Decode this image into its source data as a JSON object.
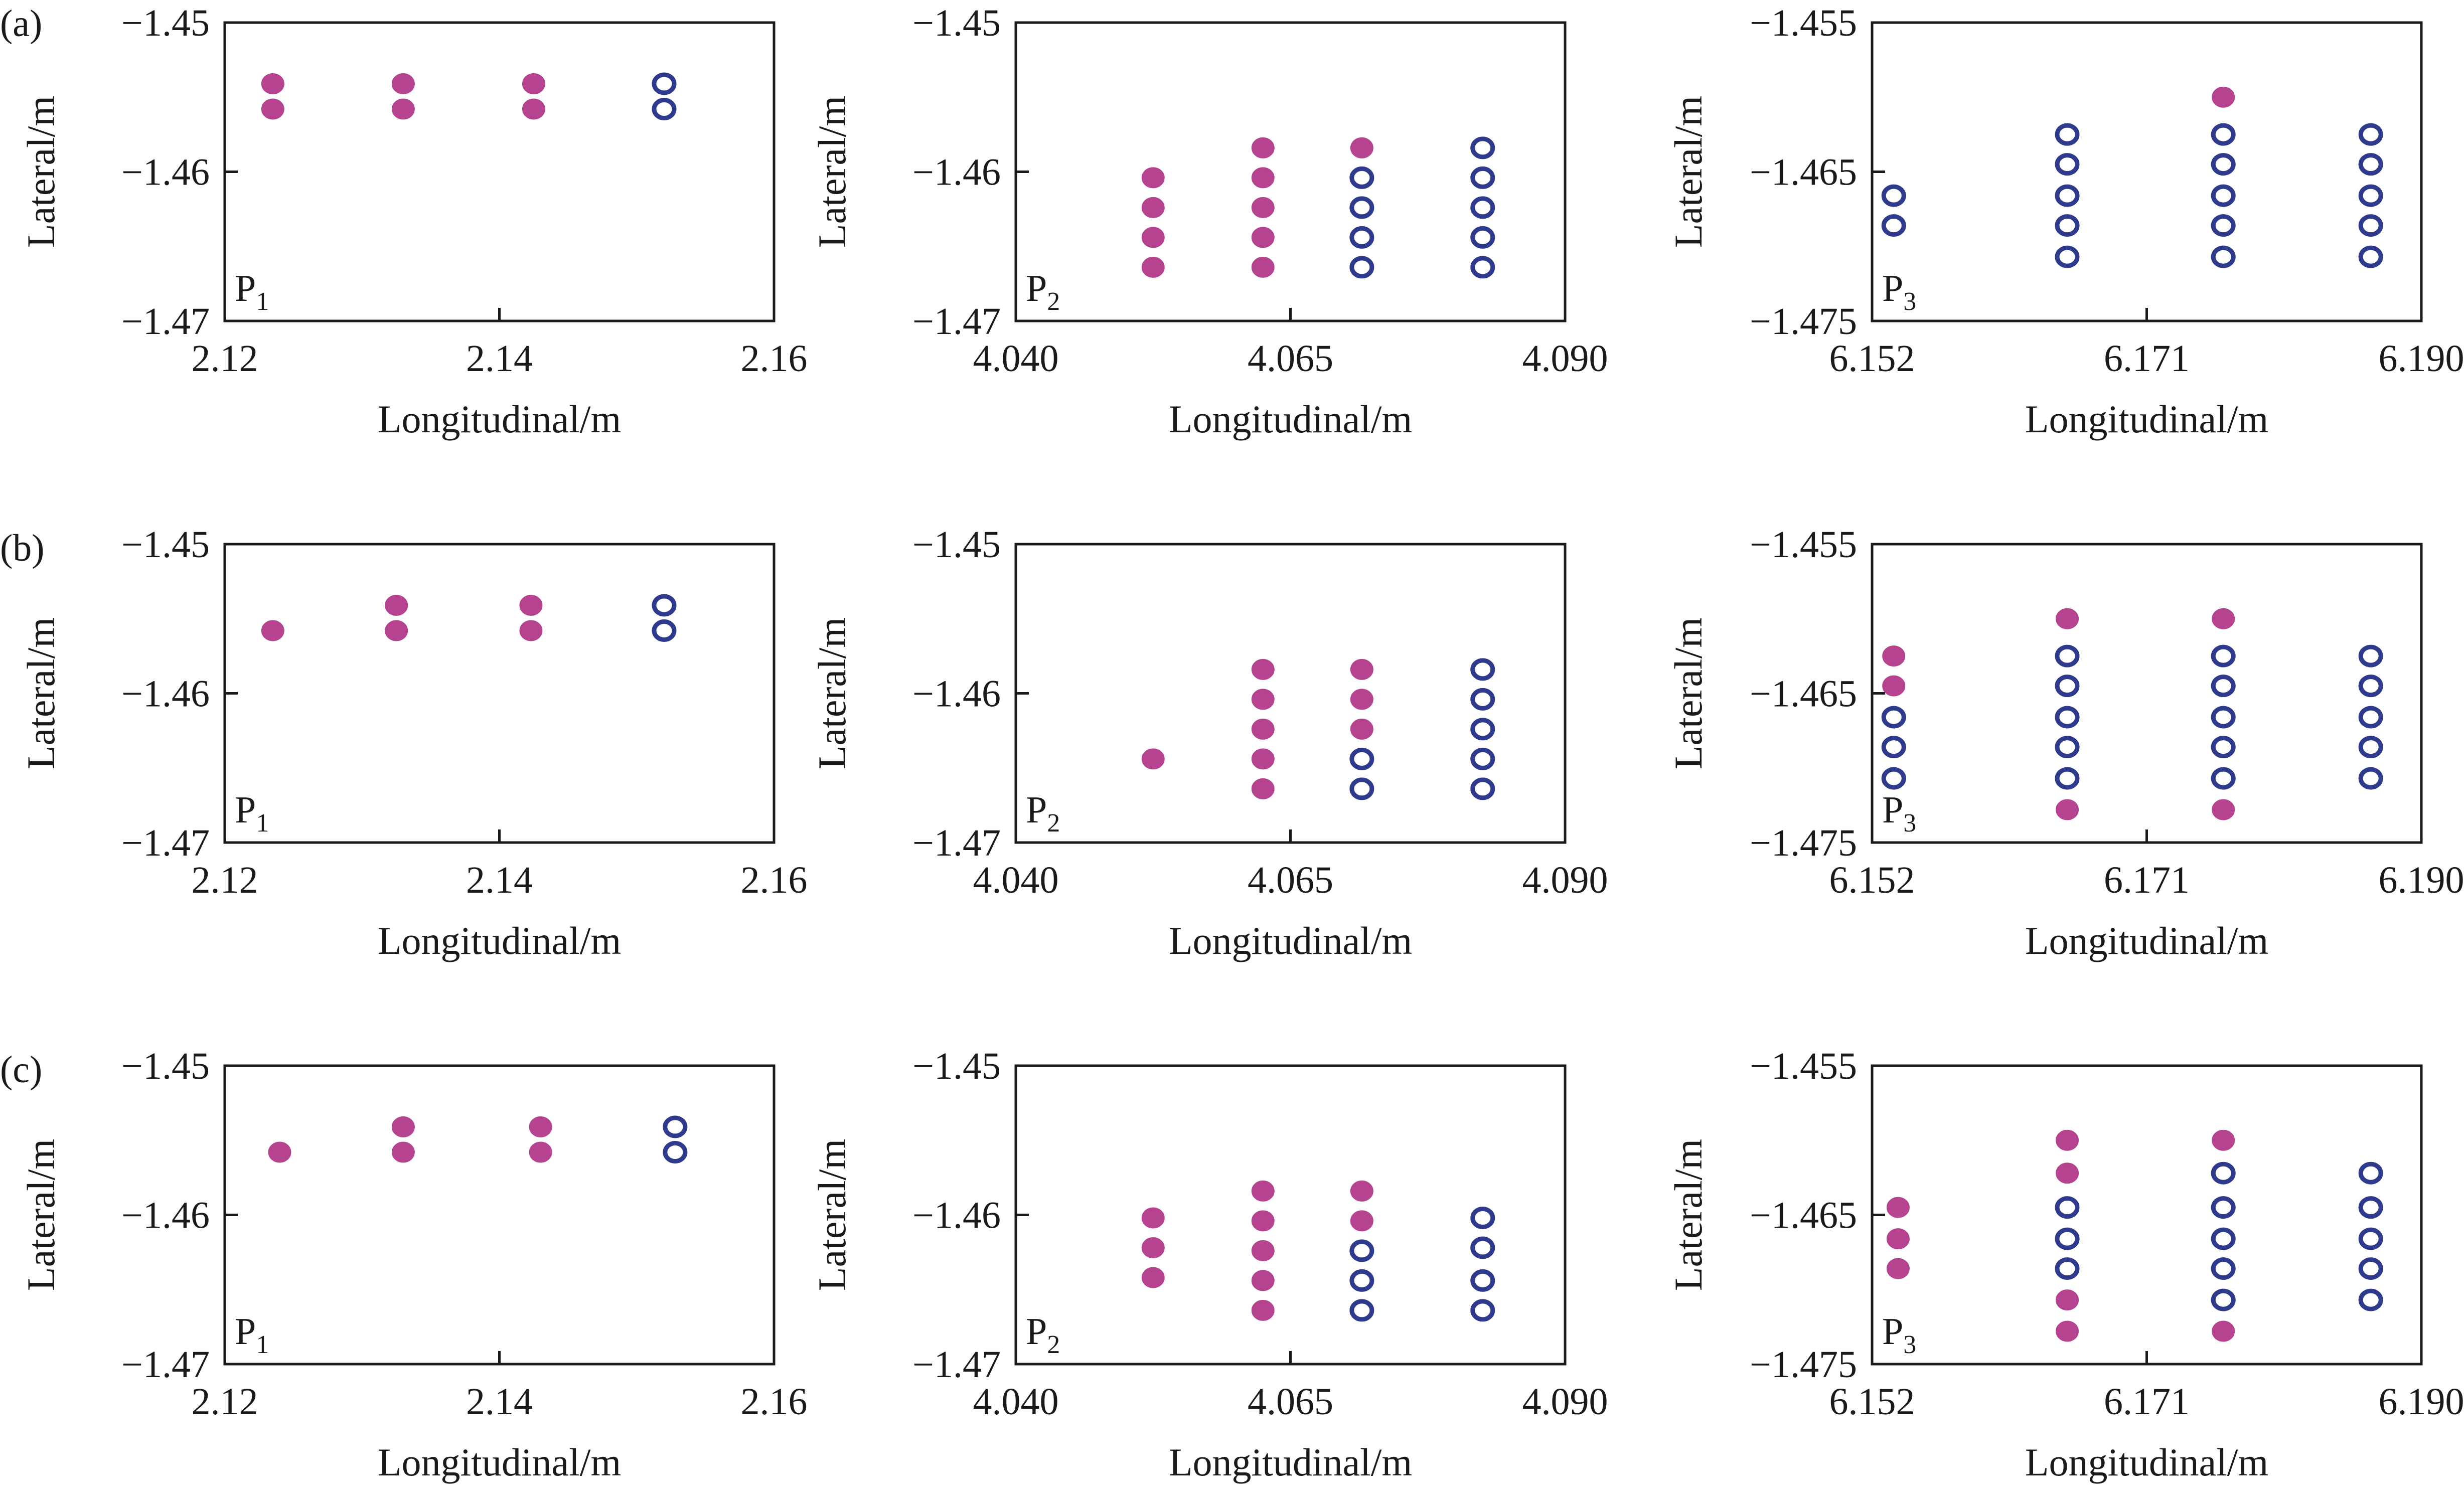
{
  "figure": {
    "colors": {
      "filled": "#b5438f",
      "hollow": "#2e3a8c",
      "axis": "#1a1a1a"
    },
    "row_labels": [
      "(a)",
      "(b)",
      "(c)"
    ]
  },
  "chart_data": [
    {
      "id": "a1",
      "type": "scatter",
      "row": "(a)",
      "panel": "P",
      "panel_sub": "1",
      "xlabel": "Longitudinal/m",
      "ylabel": "Lateral/m",
      "xlim": [
        2.12,
        2.16
      ],
      "ylim": [
        -1.47,
        -1.45
      ],
      "xticks": [
        "2.12",
        "2.14",
        "2.16"
      ],
      "yticks": [
        "-1.45",
        "-1.46",
        "-1.47"
      ],
      "series": [
        {
          "name": "filled",
          "points": [
            [
              2.1235,
              -1.4541
            ],
            [
              2.1235,
              -1.4558
            ],
            [
              2.133,
              -1.4541
            ],
            [
              2.133,
              -1.4558
            ],
            [
              2.1425,
              -1.4541
            ],
            [
              2.1425,
              -1.4558
            ]
          ]
        },
        {
          "name": "hollow",
          "points": [
            [
              2.152,
              -1.4541
            ],
            [
              2.152,
              -1.4558
            ]
          ]
        }
      ]
    },
    {
      "id": "a2",
      "type": "scatter",
      "row": "(a)",
      "panel": "P",
      "panel_sub": "2",
      "xlabel": "Longitudinal/m",
      "ylabel": "Lateral/m",
      "xlim": [
        4.04,
        4.09
      ],
      "ylim": [
        -1.47,
        -1.45
      ],
      "xticks": [
        "4.040",
        "4.065",
        "4.090"
      ],
      "yticks": [
        "-1.45",
        "-1.46",
        "-1.47"
      ],
      "series": [
        {
          "name": "filled",
          "points": [
            [
              4.0525,
              -1.4604
            ],
            [
              4.0525,
              -1.4624
            ],
            [
              4.0525,
              -1.4644
            ],
            [
              4.0525,
              -1.4664
            ],
            [
              4.0625,
              -1.4584
            ],
            [
              4.0625,
              -1.4604
            ],
            [
              4.0625,
              -1.4624
            ],
            [
              4.0625,
              -1.4644
            ],
            [
              4.0625,
              -1.4664
            ],
            [
              4.0715,
              -1.4584
            ]
          ]
        },
        {
          "name": "hollow",
          "points": [
            [
              4.0715,
              -1.4604
            ],
            [
              4.0715,
              -1.4624
            ],
            [
              4.0715,
              -1.4644
            ],
            [
              4.0715,
              -1.4664
            ],
            [
              4.0825,
              -1.4584
            ],
            [
              4.0825,
              -1.4604
            ],
            [
              4.0825,
              -1.4624
            ],
            [
              4.0825,
              -1.4644
            ],
            [
              4.0825,
              -1.4664
            ]
          ]
        }
      ]
    },
    {
      "id": "a3",
      "type": "scatter",
      "row": "(a)",
      "panel": "P",
      "panel_sub": "3",
      "xlabel": "Longitudinal/m",
      "ylabel": "Lateral/m",
      "xlim": [
        6.152,
        6.19
      ],
      "ylim": [
        -1.475,
        -1.455
      ],
      "xticks": [
        "6.152",
        "6.171",
        "6.190"
      ],
      "yticks": [
        "-1.455",
        "-1.465",
        "-1.475"
      ],
      "series": [
        {
          "name": "filled",
          "points": [
            [
              6.1763,
              -1.46
            ]
          ]
        },
        {
          "name": "hollow",
          "points": [
            [
              6.1535,
              -1.4666
            ],
            [
              6.1535,
              -1.4686
            ],
            [
              6.1655,
              -1.4625
            ],
            [
              6.1655,
              -1.4645
            ],
            [
              6.1655,
              -1.4666
            ],
            [
              6.1655,
              -1.4686
            ],
            [
              6.1655,
              -1.4707
            ],
            [
              6.1763,
              -1.4625
            ],
            [
              6.1763,
              -1.4645
            ],
            [
              6.1763,
              -1.4666
            ],
            [
              6.1763,
              -1.4686
            ],
            [
              6.1763,
              -1.4707
            ],
            [
              6.1865,
              -1.4625
            ],
            [
              6.1865,
              -1.4645
            ],
            [
              6.1865,
              -1.4666
            ],
            [
              6.1865,
              -1.4686
            ],
            [
              6.1865,
              -1.4707
            ]
          ]
        }
      ]
    },
    {
      "id": "b1",
      "type": "scatter",
      "row": "(b)",
      "panel": "P",
      "panel_sub": "1",
      "xlabel": "Longitudinal/m",
      "ylabel": "Lateral/m",
      "xlim": [
        2.12,
        2.16
      ],
      "ylim": [
        -1.47,
        -1.45
      ],
      "xticks": [
        "2.12",
        "2.14",
        "2.16"
      ],
      "yticks": [
        "-1.45",
        "-1.46",
        "-1.47"
      ],
      "series": [
        {
          "name": "filled",
          "points": [
            [
              2.1235,
              -1.4558
            ],
            [
              2.1325,
              -1.4541
            ],
            [
              2.1325,
              -1.4558
            ],
            [
              2.1423,
              -1.4541
            ],
            [
              2.1423,
              -1.4558
            ]
          ]
        },
        {
          "name": "hollow",
          "points": [
            [
              2.152,
              -1.4541
            ],
            [
              2.152,
              -1.4558
            ]
          ]
        }
      ]
    },
    {
      "id": "b2",
      "type": "scatter",
      "row": "(b)",
      "panel": "P",
      "panel_sub": "2",
      "xlabel": "Longitudinal/m",
      "ylabel": "Lateral/m",
      "xlim": [
        4.04,
        4.09
      ],
      "ylim": [
        -1.47,
        -1.45
      ],
      "xticks": [
        "4.040",
        "4.065",
        "4.090"
      ],
      "yticks": [
        "-1.45",
        "-1.46",
        "-1.47"
      ],
      "series": [
        {
          "name": "filled",
          "points": [
            [
              4.0525,
              -1.4644
            ],
            [
              4.0625,
              -1.4584
            ],
            [
              4.0625,
              -1.4604
            ],
            [
              4.0625,
              -1.4624
            ],
            [
              4.0625,
              -1.4644
            ],
            [
              4.0625,
              -1.4664
            ],
            [
              4.0715,
              -1.4584
            ],
            [
              4.0715,
              -1.4604
            ],
            [
              4.0715,
              -1.4624
            ]
          ]
        },
        {
          "name": "hollow",
          "points": [
            [
              4.0715,
              -1.4644
            ],
            [
              4.0715,
              -1.4664
            ],
            [
              4.0825,
              -1.4584
            ],
            [
              4.0825,
              -1.4604
            ],
            [
              4.0825,
              -1.4624
            ],
            [
              4.0825,
              -1.4644
            ],
            [
              4.0825,
              -1.4664
            ]
          ]
        }
      ]
    },
    {
      "id": "b3",
      "type": "scatter",
      "row": "(b)",
      "panel": "P",
      "panel_sub": "3",
      "xlabel": "Longitudinal/m",
      "ylabel": "Lateral/m",
      "xlim": [
        6.152,
        6.19
      ],
      "ylim": [
        -1.475,
        -1.455
      ],
      "xticks": [
        "6.152",
        "6.171",
        "6.190"
      ],
      "yticks": [
        "-1.455",
        "-1.465",
        "-1.475"
      ],
      "series": [
        {
          "name": "filled",
          "points": [
            [
              6.1535,
              -1.4625
            ],
            [
              6.1535,
              -1.4645
            ],
            [
              6.1655,
              -1.46
            ],
            [
              6.1655,
              -1.4728
            ],
            [
              6.1763,
              -1.46
            ],
            [
              6.1763,
              -1.4728
            ]
          ]
        },
        {
          "name": "hollow",
          "points": [
            [
              6.1535,
              -1.4666
            ],
            [
              6.1535,
              -1.4686
            ],
            [
              6.1535,
              -1.4707
            ],
            [
              6.1655,
              -1.4625
            ],
            [
              6.1655,
              -1.4645
            ],
            [
              6.1655,
              -1.4666
            ],
            [
              6.1655,
              -1.4686
            ],
            [
              6.1655,
              -1.4707
            ],
            [
              6.1763,
              -1.4625
            ],
            [
              6.1763,
              -1.4645
            ],
            [
              6.1763,
              -1.4666
            ],
            [
              6.1763,
              -1.4686
            ],
            [
              6.1763,
              -1.4707
            ],
            [
              6.1865,
              -1.4625
            ],
            [
              6.1865,
              -1.4645
            ],
            [
              6.1865,
              -1.4666
            ],
            [
              6.1865,
              -1.4686
            ],
            [
              6.1865,
              -1.4707
            ]
          ]
        }
      ]
    },
    {
      "id": "c1",
      "type": "scatter",
      "row": "(c)",
      "panel": "P",
      "panel_sub": "1",
      "xlabel": "Longitudinal/m",
      "ylabel": "Lateral/m",
      "xlim": [
        2.12,
        2.16
      ],
      "ylim": [
        -1.47,
        -1.45
      ],
      "xticks": [
        "2.12",
        "2.14",
        "2.16"
      ],
      "yticks": [
        "-1.45",
        "-1.46",
        "-1.47"
      ],
      "series": [
        {
          "name": "filled",
          "points": [
            [
              2.124,
              -1.4558
            ],
            [
              2.133,
              -1.4541
            ],
            [
              2.133,
              -1.4558
            ],
            [
              2.143,
              -1.4541
            ],
            [
              2.143,
              -1.4558
            ]
          ]
        },
        {
          "name": "hollow",
          "points": [
            [
              2.1528,
              -1.4541
            ],
            [
              2.1528,
              -1.4558
            ]
          ]
        }
      ]
    },
    {
      "id": "c2",
      "type": "scatter",
      "row": "(c)",
      "panel": "P",
      "panel_sub": "2",
      "xlabel": "Longitudinal/m",
      "ylabel": "Lateral/m",
      "xlim": [
        4.04,
        4.09
      ],
      "ylim": [
        -1.47,
        -1.45
      ],
      "xticks": [
        "4.040",
        "4.065",
        "4.090"
      ],
      "yticks": [
        "-1.45",
        "-1.46",
        "-1.47"
      ],
      "series": [
        {
          "name": "filled",
          "points": [
            [
              4.0525,
              -1.4602
            ],
            [
              4.0525,
              -1.4622
            ],
            [
              4.0525,
              -1.4642
            ],
            [
              4.0625,
              -1.4584
            ],
            [
              4.0625,
              -1.4604
            ],
            [
              4.0625,
              -1.4624
            ],
            [
              4.0625,
              -1.4644
            ],
            [
              4.0625,
              -1.4664
            ],
            [
              4.0715,
              -1.4584
            ],
            [
              4.0715,
              -1.4604
            ]
          ]
        },
        {
          "name": "hollow",
          "points": [
            [
              4.0715,
              -1.4624
            ],
            [
              4.0715,
              -1.4644
            ],
            [
              4.0715,
              -1.4664
            ],
            [
              4.0825,
              -1.4602
            ],
            [
              4.0825,
              -1.4622
            ],
            [
              4.0825,
              -1.4644
            ],
            [
              4.0825,
              -1.4664
            ]
          ]
        }
      ]
    },
    {
      "id": "c3",
      "type": "scatter",
      "row": "(c)",
      "panel": "P",
      "panel_sub": "3",
      "xlabel": "Longitudinal/m",
      "ylabel": "Lateral/m",
      "xlim": [
        6.152,
        6.19
      ],
      "ylim": [
        -1.475,
        -1.455
      ],
      "xticks": [
        "6.152",
        "6.171",
        "6.190"
      ],
      "yticks": [
        "-1.455",
        "-1.465",
        "-1.475"
      ],
      "series": [
        {
          "name": "filled",
          "points": [
            [
              6.1538,
              -1.4645
            ],
            [
              6.1538,
              -1.4666
            ],
            [
              6.1538,
              -1.4686
            ],
            [
              6.1655,
              -1.46
            ],
            [
              6.1655,
              -1.4622
            ],
            [
              6.1655,
              -1.4707
            ],
            [
              6.1655,
              -1.4728
            ],
            [
              6.1763,
              -1.46
            ],
            [
              6.1763,
              -1.4728
            ]
          ]
        },
        {
          "name": "hollow",
          "points": [
            [
              6.1655,
              -1.4645
            ],
            [
              6.1655,
              -1.4666
            ],
            [
              6.1655,
              -1.4686
            ],
            [
              6.1763,
              -1.4622
            ],
            [
              6.1763,
              -1.4645
            ],
            [
              6.1763,
              -1.4666
            ],
            [
              6.1763,
              -1.4686
            ],
            [
              6.1763,
              -1.4707
            ],
            [
              6.1865,
              -1.4622
            ],
            [
              6.1865,
              -1.4645
            ],
            [
              6.1865,
              -1.4666
            ],
            [
              6.1865,
              -1.4686
            ],
            [
              6.1865,
              -1.4707
            ]
          ]
        }
      ]
    }
  ]
}
